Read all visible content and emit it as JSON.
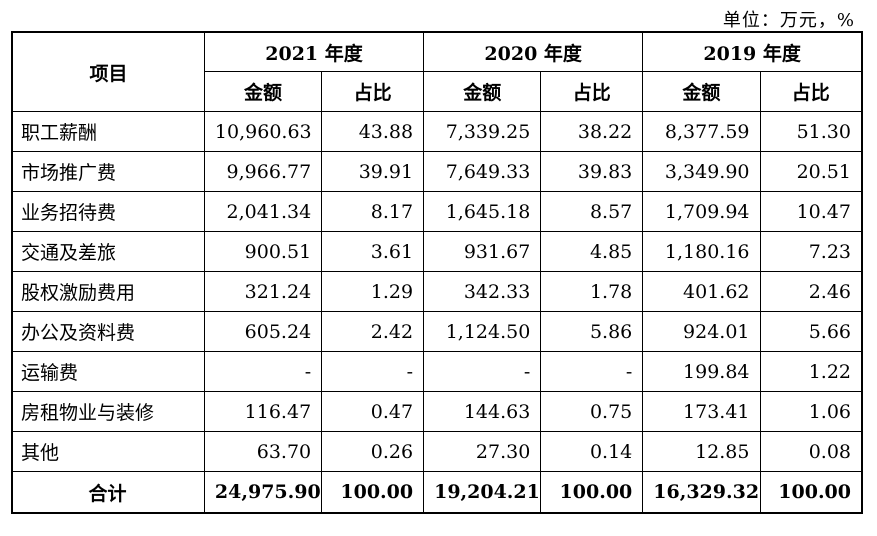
{
  "unit_note": "单位：万元，%",
  "header": {
    "item_label": "项目",
    "years": [
      "2021 年度",
      "2020 年度",
      "2019 年度"
    ],
    "amount_label": "金额",
    "ratio_label": "占比"
  },
  "rows": [
    {
      "label": "职工薪酬",
      "values": [
        "10,960.63",
        "43.88",
        "7,339.25",
        "38.22",
        "8,377.59",
        "51.30"
      ]
    },
    {
      "label": "市场推广费",
      "values": [
        "9,966.77",
        "39.91",
        "7,649.33",
        "39.83",
        "3,349.90",
        "20.51"
      ]
    },
    {
      "label": "业务招待费",
      "values": [
        "2,041.34",
        "8.17",
        "1,645.18",
        "8.57",
        "1,709.94",
        "10.47"
      ]
    },
    {
      "label": "交通及差旅",
      "values": [
        "900.51",
        "3.61",
        "931.67",
        "4.85",
        "1,180.16",
        "7.23"
      ]
    },
    {
      "label": "股权激励费用",
      "values": [
        "321.24",
        "1.29",
        "342.33",
        "1.78",
        "401.62",
        "2.46"
      ]
    },
    {
      "label": "办公及资料费",
      "values": [
        "605.24",
        "2.42",
        "1,124.50",
        "5.86",
        "924.01",
        "5.66"
      ]
    },
    {
      "label": "运输费",
      "values": [
        "-",
        "-",
        "-",
        "-",
        "199.84",
        "1.22"
      ]
    },
    {
      "label": "房租物业与装修",
      "values": [
        "116.47",
        "0.47",
        "144.63",
        "0.75",
        "173.41",
        "1.06"
      ]
    },
    {
      "label": "其他",
      "values": [
        "63.70",
        "0.26",
        "27.30",
        "0.14",
        "12.85",
        "0.08"
      ]
    }
  ],
  "total": {
    "label": "合计",
    "values": [
      "24,975.90",
      "100.00",
      "19,204.21",
      "100.00",
      "16,329.32",
      "100.00"
    ]
  }
}
